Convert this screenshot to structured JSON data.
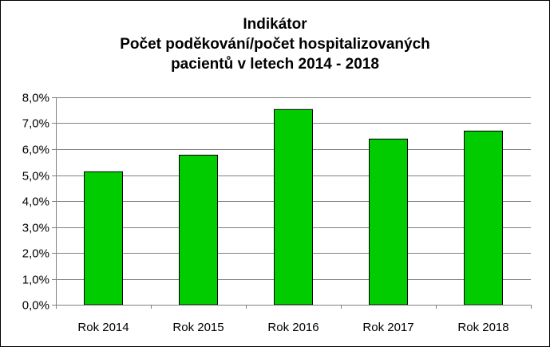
{
  "chart_data": {
    "type": "bar",
    "title_lines": [
      "Indikátor",
      "Počet poděkování/počet hospitalizovaných",
      "pacientů v letech 2014 - 2018"
    ],
    "categories": [
      "Rok 2014",
      "Rok 2015",
      "Rok 2016",
      "Rok 2017",
      "Rok 2018"
    ],
    "values": [
      0.0513,
      0.0577,
      0.0753,
      0.0639,
      0.067
    ],
    "ylim": [
      0,
      0.08
    ],
    "yticks": [
      {
        "value": 0.0,
        "label": "0,0%"
      },
      {
        "value": 0.01,
        "label": "1,0%"
      },
      {
        "value": 0.02,
        "label": "2,0%"
      },
      {
        "value": 0.03,
        "label": "3,0%"
      },
      {
        "value": 0.04,
        "label": "4,0%"
      },
      {
        "value": 0.05,
        "label": "5,0%"
      },
      {
        "value": 0.06,
        "label": "6,0%"
      },
      {
        "value": 0.07,
        "label": "7,0%"
      },
      {
        "value": 0.08,
        "label": "8,0%"
      }
    ],
    "grid": true,
    "legend": "none",
    "colors": {
      "bar": "#00cc00",
      "bar_outline": "#000000",
      "grid": "#808080"
    }
  }
}
